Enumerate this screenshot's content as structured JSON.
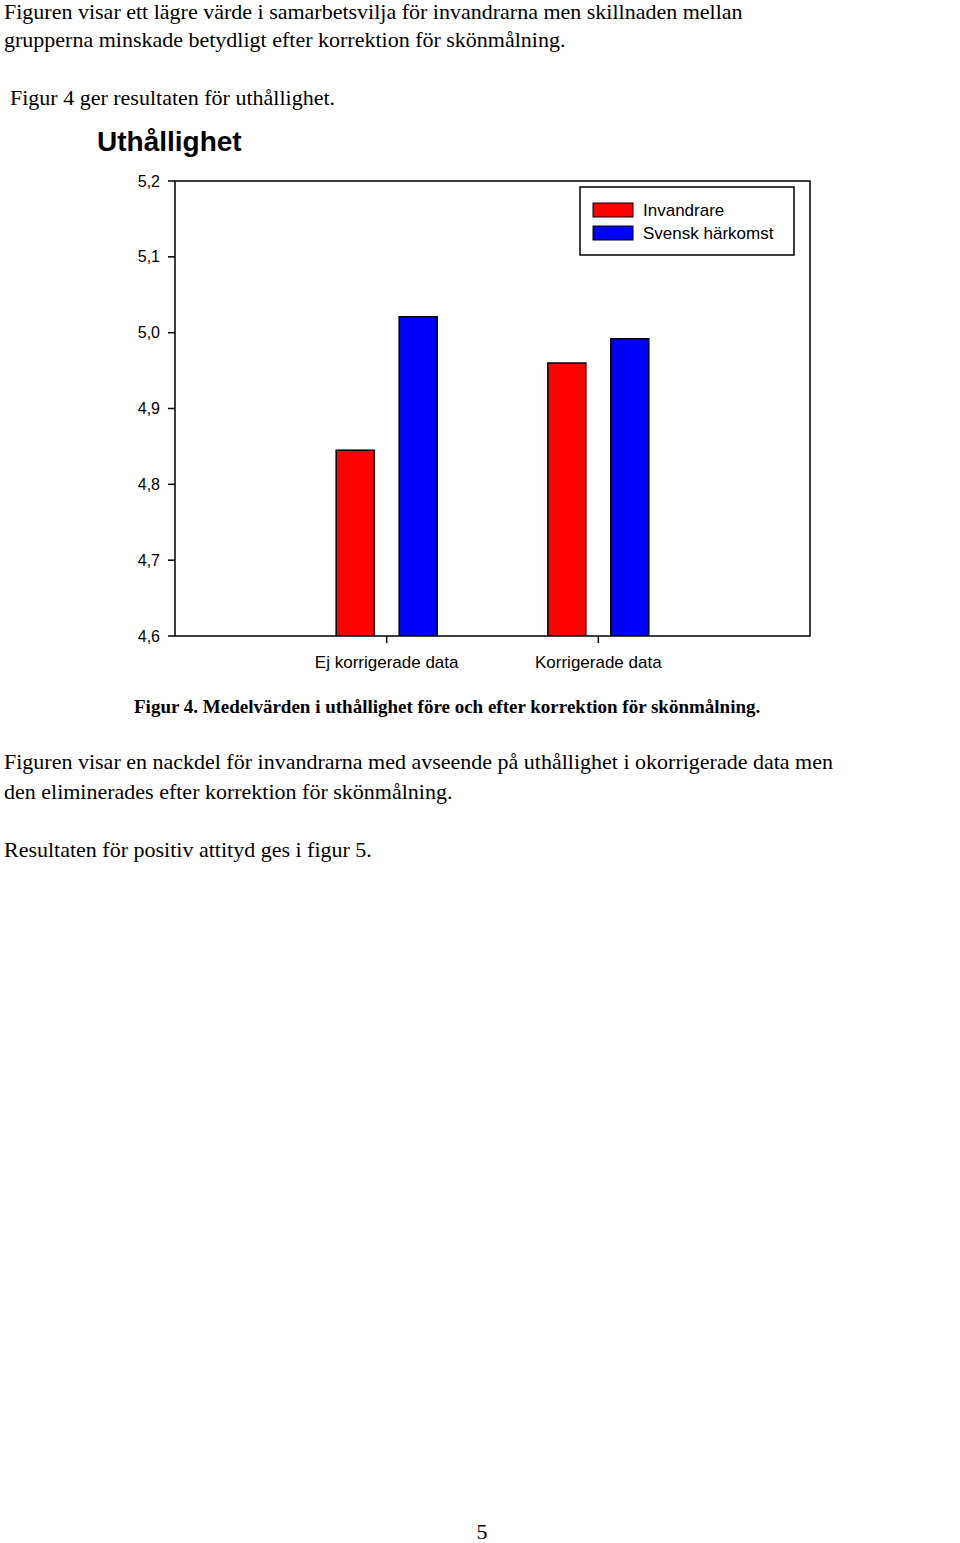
{
  "intro": [
    "Figuren visar ett lägre värde i samarbetsvilja för invandrarna men skillnaden mellan",
    "grupperna minskade betydligt efter korrektion för skönmålning."
  ],
  "figure_ref": "Figur 4 ger resultaten för uthållighet.",
  "chart_data": {
    "type": "bar",
    "title": "Uthållighet",
    "categories": [
      "Ej korrigerade data",
      "Korrigerade data"
    ],
    "series": [
      {
        "name": "Invandrare",
        "color": "#ff0000",
        "values": [
          4.845,
          4.96
        ]
      },
      {
        "name": "Svensk härkomst",
        "color": "#0000ff",
        "values": [
          5.021,
          4.992
        ]
      }
    ],
    "ylim": [
      4.6,
      5.2
    ],
    "yticks": [
      {
        "value": 4.6,
        "label": "4,6"
      },
      {
        "value": 4.7,
        "label": "4,7"
      },
      {
        "value": 4.8,
        "label": "4,8"
      },
      {
        "value": 4.9,
        "label": "4,9"
      },
      {
        "value": 5.0,
        "label": "5,0"
      },
      {
        "value": 5.1,
        "label": "5,1"
      },
      {
        "value": 5.2,
        "label": "5,2"
      }
    ],
    "legend": "upper right",
    "grid": false
  },
  "caption": "Figur 4. Medelvärden i uthållighet före och efter korrektion för skönmålning.",
  "conclusion": [
    "Figuren visar en nackdel för invandrarna med avseende på uthållighet i okorrigerade data men",
    "den eliminerades efter korrektion för skönmålning."
  ],
  "next": "Resultaten för positiv attityd ges i figur 5.",
  "page_number": "5"
}
